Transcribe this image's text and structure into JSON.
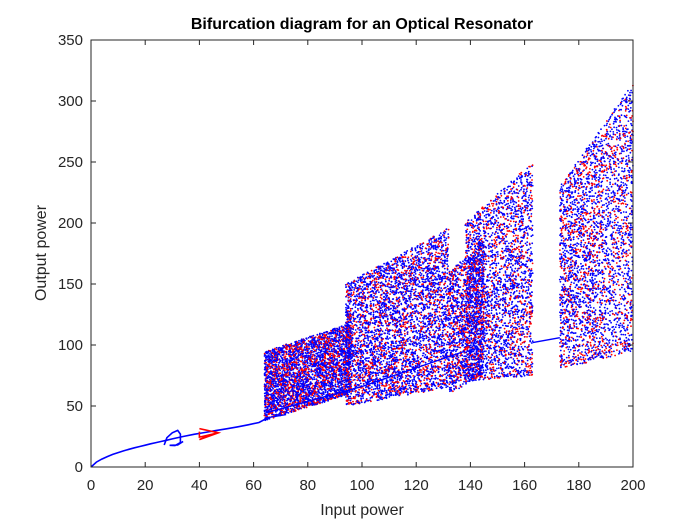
{
  "chart_data": {
    "type": "scatter",
    "title": "Bifurcation diagram for an Optical Resonator",
    "xlabel": "Input power",
    "ylabel": "Output power",
    "xlim": [
      0,
      200
    ],
    "ylim": [
      0,
      350
    ],
    "xticks": [
      "0",
      "20",
      "40",
      "60",
      "80",
      "100",
      "120",
      "140",
      "160",
      "180",
      "200"
    ],
    "yticks": [
      "0",
      "50",
      "100",
      "150",
      "200",
      "250",
      "300",
      "350"
    ],
    "grid": false,
    "legend": "none",
    "series": [
      {
        "color": "#0000ff",
        "points": [
          [
            0,
            0
          ],
          [
            2,
            4
          ],
          [
            4,
            6.5
          ],
          [
            6,
            8.5
          ],
          [
            8,
            10.3
          ],
          [
            10,
            11.8
          ],
          [
            12,
            13.2
          ],
          [
            14,
            14.5
          ],
          [
            16,
            15.7
          ],
          [
            18,
            16.8
          ],
          [
            20,
            17.9
          ],
          [
            22,
            19
          ],
          [
            24,
            20
          ],
          [
            26,
            21
          ],
          [
            28,
            22
          ],
          [
            30,
            23
          ],
          [
            34,
            25
          ],
          [
            38,
            26.8
          ],
          [
            42,
            28.3
          ],
          [
            46,
            29.8
          ],
          [
            50,
            31.3
          ],
          [
            54,
            32.9
          ],
          [
            58,
            34.6
          ],
          [
            62,
            36.5
          ],
          [
            65,
            40
          ],
          [
            27,
            18
          ],
          [
            28,
            24
          ],
          [
            30,
            28
          ],
          [
            32,
            30
          ],
          [
            33,
            27
          ],
          [
            33,
            20
          ],
          [
            31,
            17.5
          ],
          [
            29,
            17.8
          ],
          [
            32,
            18
          ],
          [
            34,
            21
          ]
        ]
      },
      {
        "color": "#ff0000",
        "points": [
          [
            40,
            31.5
          ],
          [
            42,
            30.5
          ],
          [
            44,
            29.5
          ],
          [
            46,
            28.5
          ],
          [
            47,
            28
          ],
          [
            40,
            22.5
          ],
          [
            42,
            24.5
          ],
          [
            44,
            26
          ],
          [
            46,
            27.5
          ],
          [
            40,
            24.5
          ],
          [
            40,
            29
          ]
        ]
      }
    ],
    "chaotic_bands": [
      {
        "x": [
          64,
          96
        ],
        "y_low_start": 38,
        "y_low_end": 60,
        "y_high_start": 95,
        "y_high_end": 118
      },
      {
        "x": [
          94,
          132
        ],
        "y_low_start": 50,
        "y_low_end": 65,
        "y_high_start": 150,
        "y_high_end": 196
      },
      {
        "x": [
          132,
          145
        ],
        "y_low_start": 60,
        "y_low_end": 75,
        "y_high_start": 160,
        "y_high_end": 185
      },
      {
        "x": [
          138,
          163
        ],
        "y_low_start": 70,
        "y_low_end": 75,
        "y_high_start": 200,
        "y_high_end": 250
      },
      {
        "x": [
          173,
          200
        ],
        "y_low_start": 80,
        "y_low_end": 95,
        "y_high_start": 230,
        "y_high_end": 315
      }
    ],
    "colors": {
      "blue": "#0000ff",
      "red": "#ff0000",
      "axis": "#262626"
    }
  }
}
